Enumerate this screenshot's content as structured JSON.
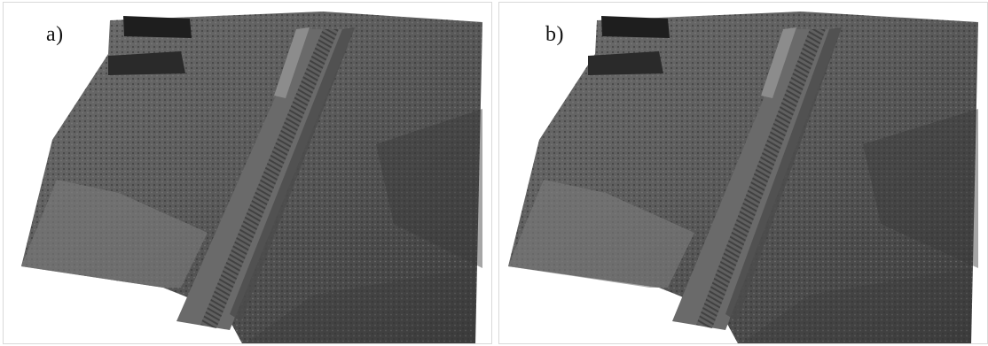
{
  "panels": [
    {
      "label": "a)"
    },
    {
      "label": "b)"
    }
  ],
  "colors": {
    "background": "#ffffff",
    "terrain_base": "#5a5a5a",
    "terrain_light": "#9a9a9a",
    "terrain_dark": "#2e2e2e"
  }
}
